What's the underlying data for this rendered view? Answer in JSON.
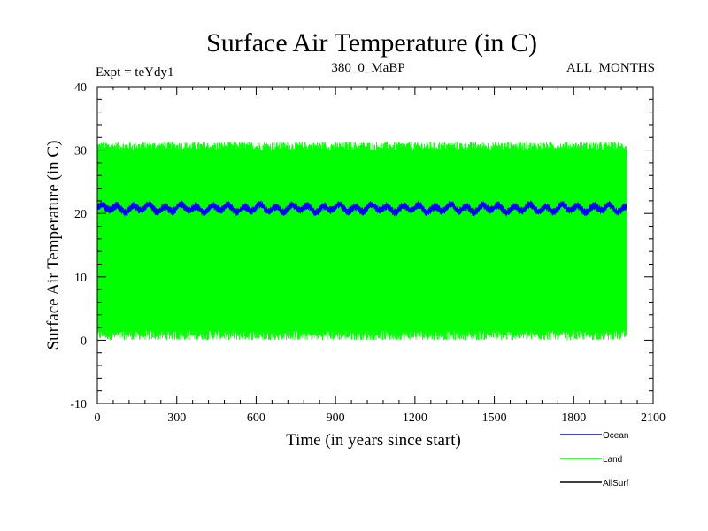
{
  "chart_data": {
    "type": "line",
    "title": "Surface Air Temperature (in C)",
    "subtitle_left": "Expt = teYdy1",
    "subtitle_center": "380_0_MaBP",
    "subtitle_right": "ALL_MONTHS",
    "xlabel": "Time (in years since start)",
    "ylabel": "Surface Air Temperature (in C)",
    "xlim": [
      0,
      2100
    ],
    "ylim": [
      -10,
      40
    ],
    "xticks": [
      0,
      300,
      600,
      900,
      1200,
      1500,
      1800,
      2100
    ],
    "yticks": [
      -10,
      0,
      10,
      20,
      30,
      40
    ],
    "legend_position": "bottom-right, outside plot",
    "series": [
      {
        "name": "Ocean",
        "color": "#0000ff",
        "x_range": [
          0,
          2000
        ],
        "mean": 20.8,
        "min": 19.5,
        "max": 22.5,
        "style": "dense seasonal band with multidecadal oscillation"
      },
      {
        "name": "Land",
        "color": "#00ff00",
        "x_range": [
          0,
          2000
        ],
        "mean": 15.8,
        "min": -0.5,
        "max": 31.8,
        "style": "dense seasonal band"
      },
      {
        "name": "AllSurf",
        "color": "#000000",
        "x_range": [
          0,
          2000
        ],
        "style": "hidden behind other series"
      }
    ]
  }
}
